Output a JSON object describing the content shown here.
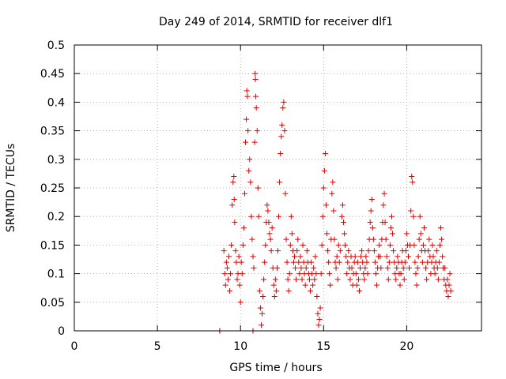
{
  "chart_data": {
    "type": "scatter",
    "title": "Day 249 of 2014, SRMTID for receiver dlf1",
    "xlabel": "GPS time / hours",
    "ylabel": "SRMTID / TECUs",
    "xlim": [
      0,
      24.5
    ],
    "ylim": [
      0,
      0.5
    ],
    "x_ticks": [
      0,
      5,
      10,
      15,
      20
    ],
    "x_tick_labels": [
      "0",
      "5",
      "10",
      "15",
      "20"
    ],
    "y_ticks": [
      0,
      0.05,
      0.1,
      0.15,
      0.2,
      0.25,
      0.3,
      0.35,
      0.4,
      0.45,
      0.5
    ],
    "y_tick_labels": [
      "0",
      "0.05",
      "0.1",
      "0.15",
      "0.2",
      "0.25",
      "0.3",
      "0.35",
      "0.4",
      "0.45",
      "0.5"
    ],
    "grid": true,
    "marker": "+",
    "color": "#e00000",
    "series": [
      {
        "name": "SRMTID dlf1",
        "points": [
          [
            8.75,
            0.0
          ],
          [
            8.75,
            0.0
          ],
          [
            10.75,
            0.0
          ],
          [
            10.75,
            0.0
          ],
          [
            9.0,
            0.14
          ],
          [
            9.05,
            0.1
          ],
          [
            9.1,
            0.08
          ],
          [
            9.15,
            0.12
          ],
          [
            9.2,
            0.11
          ],
          [
            9.25,
            0.09
          ],
          [
            9.3,
            0.13
          ],
          [
            9.35,
            0.07
          ],
          [
            9.4,
            0.1
          ],
          [
            9.45,
            0.15
          ],
          [
            9.5,
            0.22
          ],
          [
            9.55,
            0.26
          ],
          [
            9.6,
            0.27
          ],
          [
            9.62,
            0.23
          ],
          [
            9.65,
            0.19
          ],
          [
            9.7,
            0.14
          ],
          [
            9.75,
            0.12
          ],
          [
            9.8,
            0.09
          ],
          [
            9.85,
            0.1
          ],
          [
            9.9,
            0.13
          ],
          [
            9.95,
            0.08
          ],
          [
            10.0,
            0.05
          ],
          [
            10.05,
            0.12
          ],
          [
            10.1,
            0.1
          ],
          [
            10.15,
            0.15
          ],
          [
            10.2,
            0.18
          ],
          [
            10.25,
            0.24
          ],
          [
            10.3,
            0.33
          ],
          [
            10.35,
            0.37
          ],
          [
            10.38,
            0.42
          ],
          [
            10.42,
            0.41
          ],
          [
            10.45,
            0.35
          ],
          [
            10.5,
            0.28
          ],
          [
            10.55,
            0.3
          ],
          [
            10.6,
            0.26
          ],
          [
            10.65,
            0.2
          ],
          [
            10.7,
            0.16
          ],
          [
            10.75,
            0.13
          ],
          [
            10.8,
            0.11
          ],
          [
            10.85,
            0.33
          ],
          [
            10.88,
            0.45
          ],
          [
            10.9,
            0.44
          ],
          [
            10.92,
            0.41
          ],
          [
            10.95,
            0.39
          ],
          [
            11.0,
            0.35
          ],
          [
            11.05,
            0.25
          ],
          [
            11.1,
            0.2
          ],
          [
            11.15,
            0.07
          ],
          [
            11.2,
            0.04
          ],
          [
            11.25,
            0.01
          ],
          [
            11.3,
            0.03
          ],
          [
            11.35,
            0.06
          ],
          [
            11.4,
            0.09
          ],
          [
            11.45,
            0.12
          ],
          [
            11.5,
            0.15
          ],
          [
            11.55,
            0.19
          ],
          [
            11.6,
            0.22
          ],
          [
            11.65,
            0.21
          ],
          [
            11.7,
            0.19
          ],
          [
            11.75,
            0.17
          ],
          [
            11.8,
            0.16
          ],
          [
            11.85,
            0.14
          ],
          [
            11.9,
            0.18
          ],
          [
            11.95,
            0.11
          ],
          [
            12.0,
            0.08
          ],
          [
            12.05,
            0.06
          ],
          [
            12.1,
            0.09
          ],
          [
            12.15,
            0.07
          ],
          [
            12.2,
            0.11
          ],
          [
            12.25,
            0.14
          ],
          [
            12.3,
            0.2
          ],
          [
            12.35,
            0.26
          ],
          [
            12.4,
            0.31
          ],
          [
            12.45,
            0.34
          ],
          [
            12.5,
            0.36
          ],
          [
            12.55,
            0.39
          ],
          [
            12.6,
            0.4
          ],
          [
            12.65,
            0.35
          ],
          [
            12.7,
            0.24
          ],
          [
            12.75,
            0.16
          ],
          [
            12.8,
            0.12
          ],
          [
            12.85,
            0.09
          ],
          [
            12.9,
            0.07
          ],
          [
            12.95,
            0.1
          ],
          [
            13.0,
            0.15
          ],
          [
            13.05,
            0.2
          ],
          [
            13.1,
            0.17
          ],
          [
            13.15,
            0.14
          ],
          [
            13.2,
            0.12
          ],
          [
            13.25,
            0.13
          ],
          [
            13.3,
            0.11
          ],
          [
            13.35,
            0.09
          ],
          [
            13.4,
            0.14
          ],
          [
            13.45,
            0.16
          ],
          [
            13.5,
            0.12
          ],
          [
            13.55,
            0.1
          ],
          [
            13.6,
            0.13
          ],
          [
            13.65,
            0.11
          ],
          [
            13.7,
            0.09
          ],
          [
            13.75,
            0.15
          ],
          [
            13.8,
            0.12
          ],
          [
            13.85,
            0.1
          ],
          [
            13.9,
            0.08
          ],
          [
            13.95,
            0.11
          ],
          [
            14.0,
            0.14
          ],
          [
            14.05,
            0.12
          ],
          [
            14.1,
            0.1
          ],
          [
            14.15,
            0.09
          ],
          [
            14.2,
            0.07
          ],
          [
            14.25,
            0.12
          ],
          [
            14.3,
            0.1
          ],
          [
            14.35,
            0.08
          ],
          [
            14.4,
            0.11
          ],
          [
            14.45,
            0.09
          ],
          [
            14.5,
            0.13
          ],
          [
            14.55,
            0.1
          ],
          [
            14.6,
            0.06
          ],
          [
            14.65,
            0.03
          ],
          [
            14.7,
            0.01
          ],
          [
            14.75,
            0.02
          ],
          [
            14.8,
            0.04
          ],
          [
            14.85,
            0.1
          ],
          [
            14.9,
            0.15
          ],
          [
            14.95,
            0.2
          ],
          [
            15.0,
            0.25
          ],
          [
            15.05,
            0.28
          ],
          [
            15.1,
            0.31
          ],
          [
            15.15,
            0.22
          ],
          [
            15.2,
            0.17
          ],
          [
            15.25,
            0.14
          ],
          [
            15.3,
            0.12
          ],
          [
            15.35,
            0.1
          ],
          [
            15.4,
            0.08
          ],
          [
            15.45,
            0.16
          ],
          [
            15.5,
            0.24
          ],
          [
            15.55,
            0.26
          ],
          [
            15.6,
            0.21
          ],
          [
            15.65,
            0.16
          ],
          [
            15.7,
            0.12
          ],
          [
            15.75,
            0.11
          ],
          [
            15.8,
            0.13
          ],
          [
            15.85,
            0.09
          ],
          [
            15.9,
            0.15
          ],
          [
            15.95,
            0.12
          ],
          [
            16.0,
            0.14
          ],
          [
            16.1,
            0.2
          ],
          [
            16.15,
            0.22
          ],
          [
            16.2,
            0.19
          ],
          [
            16.25,
            0.17
          ],
          [
            16.3,
            0.15
          ],
          [
            16.35,
            0.13
          ],
          [
            16.4,
            0.1
          ],
          [
            16.45,
            0.12
          ],
          [
            16.5,
            0.14
          ],
          [
            16.55,
            0.11
          ],
          [
            16.6,
            0.09
          ],
          [
            16.65,
            0.13
          ],
          [
            16.7,
            0.11
          ],
          [
            16.75,
            0.08
          ],
          [
            16.8,
            0.1
          ],
          [
            16.85,
            0.12
          ],
          [
            16.9,
            0.13
          ],
          [
            16.95,
            0.1
          ],
          [
            17.0,
            0.08
          ],
          [
            17.05,
            0.12
          ],
          [
            17.1,
            0.09
          ],
          [
            17.15,
            0.07
          ],
          [
            17.2,
            0.11
          ],
          [
            17.25,
            0.13
          ],
          [
            17.3,
            0.14
          ],
          [
            17.35,
            0.12
          ],
          [
            17.4,
            0.1
          ],
          [
            17.45,
            0.09
          ],
          [
            17.5,
            0.11
          ],
          [
            17.55,
            0.13
          ],
          [
            17.6,
            0.12
          ],
          [
            17.65,
            0.1
          ],
          [
            17.7,
            0.14
          ],
          [
            17.75,
            0.16
          ],
          [
            17.8,
            0.19
          ],
          [
            17.85,
            0.21
          ],
          [
            17.9,
            0.23
          ],
          [
            17.95,
            0.18
          ],
          [
            18.0,
            0.16
          ],
          [
            18.05,
            0.14
          ],
          [
            18.1,
            0.12
          ],
          [
            18.15,
            0.1
          ],
          [
            18.2,
            0.08
          ],
          [
            18.25,
            0.11
          ],
          [
            18.3,
            0.13
          ],
          [
            18.35,
            0.15
          ],
          [
            18.4,
            0.13
          ],
          [
            18.45,
            0.11
          ],
          [
            18.5,
            0.16
          ],
          [
            18.55,
            0.19
          ],
          [
            18.6,
            0.22
          ],
          [
            18.65,
            0.24
          ],
          [
            18.7,
            0.19
          ],
          [
            18.75,
            0.16
          ],
          [
            18.8,
            0.13
          ],
          [
            18.85,
            0.11
          ],
          [
            18.9,
            0.09
          ],
          [
            18.95,
            0.12
          ],
          [
            19.0,
            0.15
          ],
          [
            19.05,
            0.18
          ],
          [
            19.1,
            0.2
          ],
          [
            19.15,
            0.17
          ],
          [
            19.2,
            0.14
          ],
          [
            19.25,
            0.12
          ],
          [
            19.3,
            0.1
          ],
          [
            19.35,
            0.09
          ],
          [
            19.4,
            0.11
          ],
          [
            19.45,
            0.13
          ],
          [
            19.5,
            0.12
          ],
          [
            19.55,
            0.1
          ],
          [
            19.6,
            0.08
          ],
          [
            19.65,
            0.1
          ],
          [
            19.7,
            0.12
          ],
          [
            19.75,
            0.14
          ],
          [
            19.8,
            0.11
          ],
          [
            19.85,
            0.09
          ],
          [
            19.9,
            0.12
          ],
          [
            19.95,
            0.14
          ],
          [
            20.0,
            0.17
          ],
          [
            20.05,
            0.15
          ],
          [
            20.1,
            0.13
          ],
          [
            20.15,
            0.11
          ],
          [
            20.2,
            0.15
          ],
          [
            20.25,
            0.21
          ],
          [
            20.3,
            0.27
          ],
          [
            20.35,
            0.26
          ],
          [
            20.4,
            0.2
          ],
          [
            20.45,
            0.15
          ],
          [
            20.5,
            0.12
          ],
          [
            20.55,
            0.1
          ],
          [
            20.6,
            0.08
          ],
          [
            20.65,
            0.11
          ],
          [
            20.7,
            0.13
          ],
          [
            20.75,
            0.16
          ],
          [
            20.8,
            0.2
          ],
          [
            20.85,
            0.17
          ],
          [
            20.9,
            0.14
          ],
          [
            20.95,
            0.12
          ],
          [
            21.0,
            0.15
          ],
          [
            21.05,
            0.18
          ],
          [
            21.1,
            0.14
          ],
          [
            21.15,
            0.11
          ],
          [
            21.2,
            0.09
          ],
          [
            21.25,
            0.12
          ],
          [
            21.3,
            0.14
          ],
          [
            21.35,
            0.16
          ],
          [
            21.4,
            0.13
          ],
          [
            21.45,
            0.1
          ],
          [
            21.5,
            0.12
          ],
          [
            21.55,
            0.15
          ],
          [
            21.6,
            0.13
          ],
          [
            21.65,
            0.11
          ],
          [
            21.7,
            0.1
          ],
          [
            21.75,
            0.12
          ],
          [
            21.8,
            0.14
          ],
          [
            21.85,
            0.11
          ],
          [
            21.9,
            0.09
          ],
          [
            21.95,
            0.12
          ],
          [
            22.0,
            0.15
          ],
          [
            22.05,
            0.18
          ],
          [
            22.1,
            0.16
          ],
          [
            22.15,
            0.13
          ],
          [
            22.2,
            0.11
          ],
          [
            22.25,
            0.09
          ],
          [
            22.3,
            0.11
          ],
          [
            22.35,
            0.08
          ],
          [
            22.4,
            0.07
          ],
          [
            22.45,
            0.09
          ],
          [
            22.5,
            0.06
          ],
          [
            22.55,
            0.08
          ],
          [
            22.6,
            0.1
          ],
          [
            22.65,
            0.07
          ]
        ]
      }
    ]
  }
}
